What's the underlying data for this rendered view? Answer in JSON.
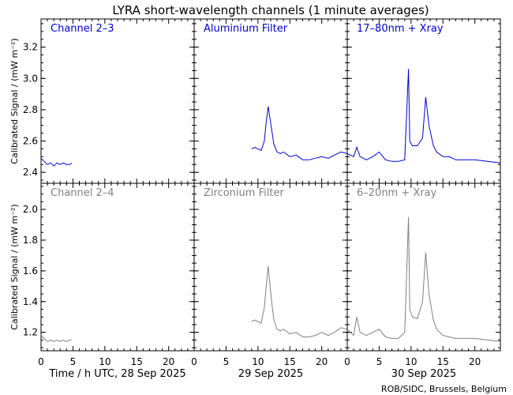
{
  "figure": {
    "title": "LYRA short-wavelength channels (1 minute averages)",
    "credit": "ROB/SIDC, Brussels, Belgium",
    "ylabel": "Calibrated Signal / (mW m⁻²)"
  },
  "colors": {
    "top": "#0000cc",
    "bottom": "#808080",
    "axes": "#000000"
  },
  "chart_data": [
    {
      "type": "line",
      "row": "top",
      "ylabel": "Calibrated Signal / (mW m⁻²)",
      "ylim": [
        2.33,
        3.38
      ],
      "yticks": [
        2.4,
        2.6,
        2.8,
        3.0,
        3.2
      ],
      "xlim": [
        0,
        24
      ],
      "xticks": [
        0,
        5,
        10,
        15,
        20
      ],
      "panels": [
        {
          "label": "Channel 2–3",
          "date": "28 Sep 2025",
          "xlabel": "Time / h UTC, 28 Sep 2025",
          "series": [
            {
              "x": [
                0,
                0.5,
                1,
                1.5,
                2,
                2.5,
                3,
                3.5,
                4,
                4.5,
                4.8
              ],
              "y": [
                2.49,
                2.47,
                2.45,
                2.46,
                2.44,
                2.46,
                2.45,
                2.46,
                2.45,
                2.45,
                2.46
              ]
            }
          ]
        },
        {
          "label": "Aluminium Filter",
          "date": "29 Sep 2025",
          "xlabel": "29 Sep 2025",
          "series": [
            {
              "x": [
                9,
                9.5,
                10,
                10.5,
                11,
                11.3,
                11.6,
                11.9,
                12.2,
                12.5,
                13,
                13.5,
                14,
                15,
                16,
                17,
                18,
                19,
                20,
                21,
                22,
                23,
                24
              ],
              "y": [
                2.55,
                2.56,
                2.55,
                2.54,
                2.6,
                2.72,
                2.82,
                2.74,
                2.66,
                2.58,
                2.53,
                2.52,
                2.53,
                2.5,
                2.51,
                2.48,
                2.48,
                2.49,
                2.5,
                2.49,
                2.51,
                2.53,
                2.52
              ]
            }
          ]
        },
        {
          "label": "17–80nm + Xray",
          "date": "30 Sep 2025",
          "xlabel": "30 Sep 2025",
          "series": [
            {
              "x": [
                0,
                1,
                1.5,
                2,
                3,
                4,
                5,
                6,
                7,
                8,
                9,
                9.6,
                9.8,
                10.2,
                11,
                11.8,
                12.3,
                12.8,
                13.5,
                14,
                15,
                16,
                17,
                18,
                20,
                22,
                24
              ],
              "y": [
                2.52,
                2.5,
                2.56,
                2.5,
                2.48,
                2.5,
                2.53,
                2.48,
                2.47,
                2.47,
                2.48,
                3.06,
                2.6,
                2.57,
                2.57,
                2.62,
                2.88,
                2.7,
                2.57,
                2.53,
                2.5,
                2.5,
                2.48,
                2.48,
                2.48,
                2.47,
                2.46
              ]
            }
          ]
        }
      ]
    },
    {
      "type": "line",
      "row": "bottom",
      "ylabel": "Calibrated Signal / (mW m⁻²)",
      "ylim": [
        1.08,
        2.17
      ],
      "yticks": [
        1.2,
        1.4,
        1.6,
        1.8,
        2.0
      ],
      "xlim": [
        0,
        24
      ],
      "xticks": [
        0,
        5,
        10,
        15,
        20
      ],
      "panels": [
        {
          "label": "Channel 2–4",
          "date": "28 Sep 2025",
          "xlabel": "Time / h UTC, 28 Sep 2025",
          "series": [
            {
              "x": [
                0,
                0.5,
                1,
                1.5,
                2,
                2.5,
                3,
                3.5,
                4,
                4.5,
                4.8
              ],
              "y": [
                1.18,
                1.16,
                1.14,
                1.15,
                1.14,
                1.15,
                1.14,
                1.15,
                1.14,
                1.15,
                1.15
              ]
            }
          ]
        },
        {
          "label": "Zirconium Filter",
          "date": "29 Sep 2025",
          "xlabel": "29 Sep 2025",
          "series": [
            {
              "x": [
                9,
                9.5,
                10,
                10.5,
                11,
                11.3,
                11.6,
                11.9,
                12.2,
                12.5,
                13,
                13.5,
                14,
                15,
                16,
                17,
                18,
                19,
                20,
                21,
                22,
                23,
                24
              ],
              "y": [
                1.27,
                1.28,
                1.27,
                1.26,
                1.36,
                1.5,
                1.63,
                1.5,
                1.38,
                1.28,
                1.22,
                1.21,
                1.22,
                1.19,
                1.2,
                1.17,
                1.17,
                1.18,
                1.2,
                1.18,
                1.2,
                1.23,
                1.22
              ]
            }
          ]
        },
        {
          "label": "6–20nm + Xray",
          "date": "30 Sep 2025",
          "xlabel": "30 Sep 2025",
          "series": [
            {
              "x": [
                0,
                1,
                1.5,
                2,
                3,
                4,
                5,
                6,
                7,
                8,
                9,
                9.6,
                9.8,
                10.2,
                11,
                11.8,
                12.3,
                12.8,
                13.5,
                14,
                15,
                16,
                17,
                18,
                20,
                22,
                24
              ],
              "y": [
                1.22,
                1.18,
                1.3,
                1.2,
                1.18,
                1.2,
                1.22,
                1.17,
                1.16,
                1.16,
                1.2,
                1.95,
                1.35,
                1.3,
                1.29,
                1.4,
                1.72,
                1.45,
                1.28,
                1.22,
                1.18,
                1.17,
                1.16,
                1.16,
                1.16,
                1.15,
                1.14
              ]
            }
          ]
        }
      ]
    }
  ]
}
